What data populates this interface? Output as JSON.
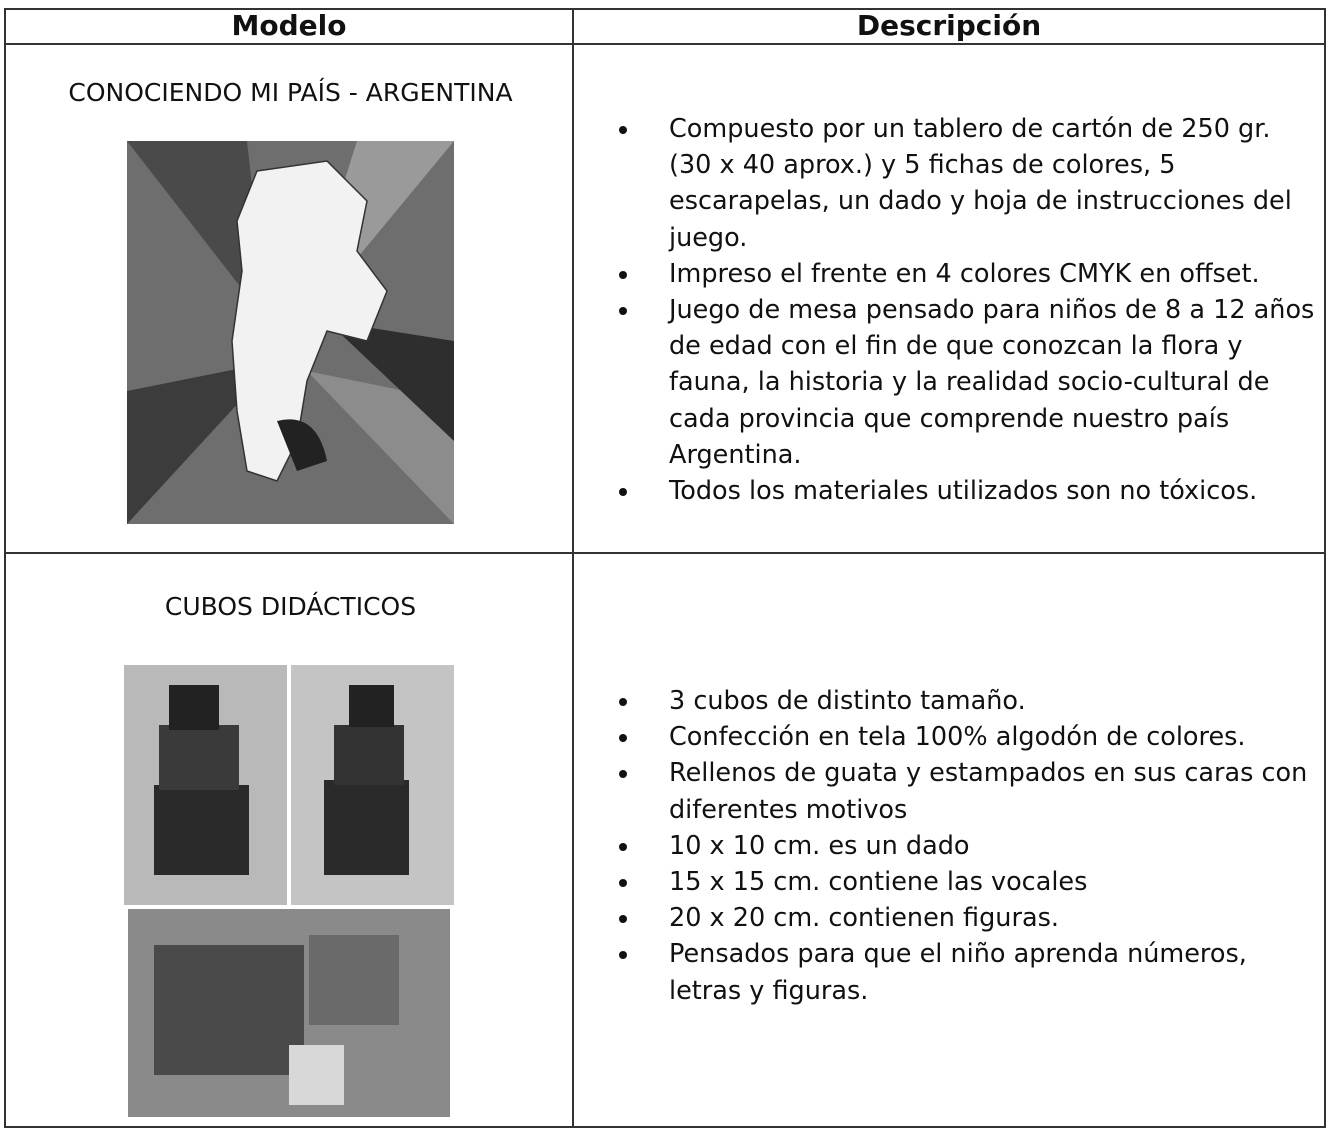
{
  "table": {
    "header": [
      "Modelo",
      "Descripción"
    ],
    "rows": [
      {
        "model": "CONOCIENDO MI PAÍS - ARGENTINA",
        "description": [
          "Compuesto por un tablero de cartón de 250 gr. (30 x 40 aprox.) y 5 fichas de colores, 5 escarapelas, un dado y hoja de instrucciones del juego.",
          "Impreso el frente en 4 colores CMYK en offset.",
          "Juego de mesa pensado para niños de 8 a 12 años de edad con el fin de que conozcan la flora y fauna, la historia y la realidad socio-cultural de cada provincia que comprende nuestro país Argentina.",
          "Todos los materiales utilizados son no tóxicos."
        ]
      },
      {
        "model": "CUBOS DIDÁCTICOS",
        "description": [
          "3 cubos de distinto tamaño.",
          "Confección en tela 100% algodón de colores.",
          "Rellenos de guata y estampados en sus caras con diferentes motivos",
          "10 x 10 cm. es un dado",
          "15 x 15 cm. contiene las vocales",
          "20 x 20 cm. contienen figuras.",
          "Pensados para que el niño aprenda números, letras y figuras."
        ]
      }
    ]
  }
}
